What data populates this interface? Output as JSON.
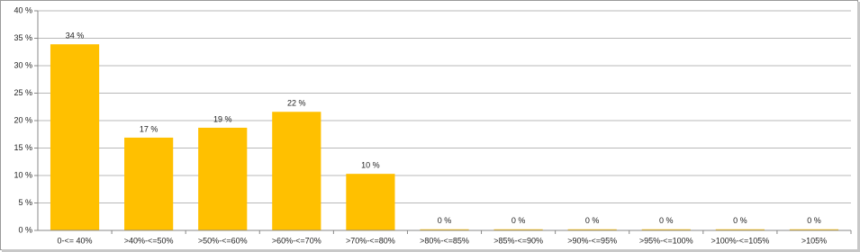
{
  "chart_data": {
    "type": "bar",
    "categories": [
      "0-<= 40%",
      ">40%-<=50%",
      ">50%-<=60%",
      ">60%-<=70%",
      ">70%-<=80%",
      ">80%-<=85%",
      ">85%-<=90%",
      ">90%-<=95%",
      ">95%-<=100%",
      ">100%-<=105%",
      ">105%"
    ],
    "values": [
      33.9,
      16.9,
      18.7,
      21.6,
      10.3,
      0.2,
      0.2,
      0.2,
      0.2,
      0.2,
      0.2
    ],
    "value_labels": [
      "34 %",
      "17 %",
      "19 %",
      "22 %",
      "10 %",
      "0 %",
      "0 %",
      "0 %",
      "0 %",
      "0 %",
      "0 %"
    ],
    "color": "#ffc000",
    "ylim": [
      0,
      40
    ],
    "yticks": [
      {
        "value": 0,
        "label": "0 %"
      },
      {
        "value": 5,
        "label": "5 %"
      },
      {
        "value": 10,
        "label": "10 %"
      },
      {
        "value": 15,
        "label": "15 %"
      },
      {
        "value": 20,
        "label": "20 %"
      },
      {
        "value": 25,
        "label": "25 %"
      },
      {
        "value": 30,
        "label": "30 %"
      },
      {
        "value": 35,
        "label": "35 %"
      },
      {
        "value": 40,
        "label": "40 %"
      }
    ],
    "grid": true
  }
}
